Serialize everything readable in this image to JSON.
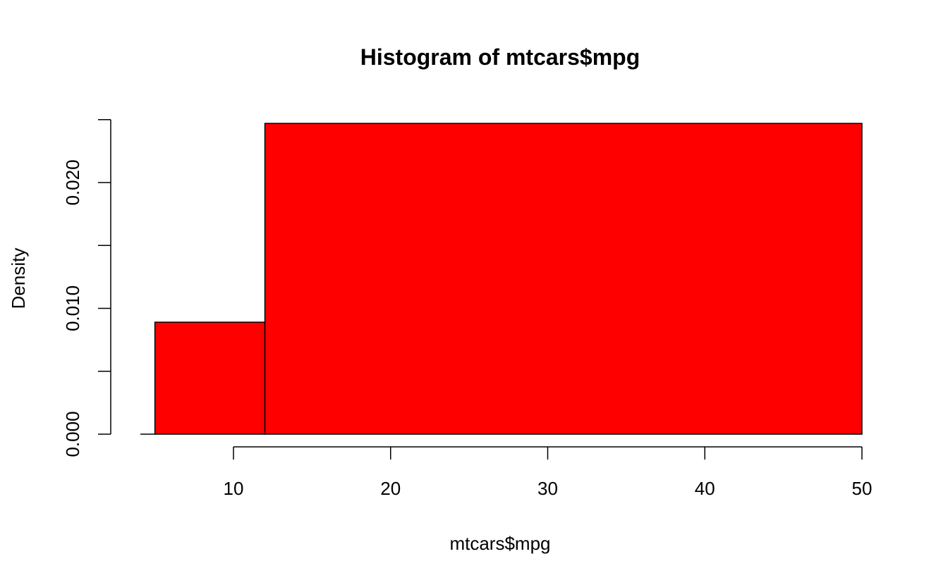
{
  "chart_data": {
    "type": "bar",
    "title": "Histogram of mtcars$mpg",
    "xlabel": "mtcars$mpg",
    "ylabel": "Density",
    "bins": [
      {
        "start": 5,
        "end": 12,
        "density": 0.0089
      },
      {
        "start": 12,
        "end": 50,
        "density": 0.0247
      }
    ],
    "xlim": [
      5,
      50
    ],
    "ylim": [
      0,
      0.025
    ],
    "x_ticks": [
      10,
      20,
      30,
      40,
      50
    ],
    "y_ticks": [
      0,
      0.005,
      0.01,
      0.015,
      0.02,
      0.025
    ],
    "y_tick_labels": [
      {
        "value": 0,
        "label": "0.000"
      },
      {
        "value": 0.01,
        "label": "0.010"
      },
      {
        "value": 0.02,
        "label": "0.020"
      }
    ],
    "bar_color": "#ff0000",
    "grid": false
  }
}
